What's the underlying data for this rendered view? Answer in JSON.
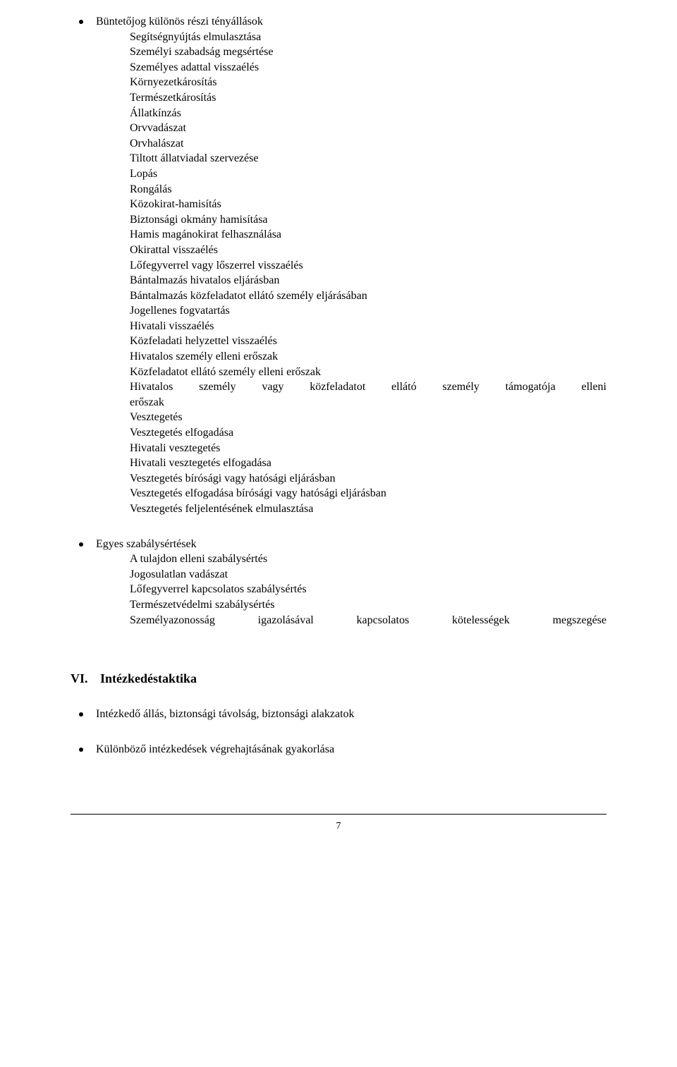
{
  "section1": {
    "bullet_label": "Büntetőjog különös részi tényállások",
    "items": [
      "Segítségnyújtás elmulasztása",
      "Személyi szabadság megsértése",
      "Személyes adattal visszaélés",
      "Környezetkárosítás",
      "Természetkárosítás",
      "Állatkínzás",
      "Orvvadászat",
      "Orvhalászat",
      "Tiltott állatviadal szervezése",
      "Lopás",
      "Rongálás",
      "Közokirat-hamisítás",
      "Biztonsági okmány hamisítása",
      "Hamis magánokirat felhasználása",
      "Okirattal visszaélés",
      "Lőfegyverrel vagy lőszerrel visszaélés",
      "Bántalmazás hivatalos eljárásban",
      "Bántalmazás közfeladatot ellátó személy eljárásában",
      "Jogellenes fogvatartás",
      "Hivatali visszaélés",
      "Közfeladati helyzettel visszaélés",
      "Hivatalos személy elleni erőszak",
      "Közfeladatot ellátó személy elleni erőszak",
      "Hivatalos személy vagy közfeladatot ellátó személy támogatója elleni erőszak",
      "Vesztegetés",
      "Vesztegetés elfogadása",
      "Hivatali vesztegetés",
      "Hivatali vesztegetés elfogadása",
      "Vesztegetés bírósági vagy hatósági eljárásban",
      "Vesztegetés elfogadása bírósági vagy hatósági eljárásban",
      "Vesztegetés feljelentésének elmulasztása"
    ]
  },
  "section2": {
    "bullet_label": "Egyes szabálysértések",
    "items": [
      "A tulajdon elleni szabálysértés",
      "Jogosulatlan vadászat",
      "Lőfegyverrel kapcsolatos szabálysértés",
      "Természetvédelmi szabálysértés",
      "Személyazonosság igazolásával kapcsolatos kötelességek megszegése"
    ]
  },
  "heading": {
    "roman": "VI.",
    "text": "Intézkedéstaktika"
  },
  "section3": {
    "items": [
      "Intézkedő állás, biztonsági távolság, biztonsági alakzatok",
      "Különböző intézkedések végrehajtásának gyakorlása"
    ]
  },
  "page_number": "7"
}
